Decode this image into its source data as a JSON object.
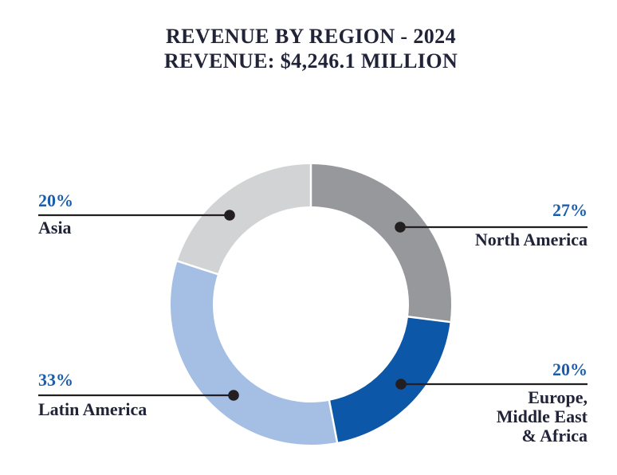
{
  "title": {
    "line1": "REVENUE BY REGION - 2024",
    "line2": "REVENUE: $4,246.1 MILLION"
  },
  "chart_data": {
    "type": "pie",
    "subtype": "donut",
    "title": "REVENUE BY REGION - 2024",
    "subtitle": "REVENUE: $4,246.1 MILLION",
    "total_revenue_label": "$4,246.1 MILLION",
    "unit": "percent",
    "direction": "clockwise",
    "start_angle_deg": 0,
    "legend_position": "callouts",
    "segments": [
      {
        "label": "North America",
        "value": 27,
        "value_label": "27%",
        "color": "#97989b"
      },
      {
        "label": "Europe, Middle East & Africa",
        "value": 20,
        "value_label": "20%",
        "color": "#0d57a9"
      },
      {
        "label": "Latin America",
        "value": 33,
        "value_label": "33%",
        "color": "#a5bfe4"
      },
      {
        "label": "Asia",
        "value": 20,
        "value_label": "20%",
        "color": "#d2d3d4"
      }
    ]
  },
  "callouts": {
    "asia": {
      "pct": "20%",
      "name": "Asia"
    },
    "north_america": {
      "pct": "27%",
      "name": "North America"
    },
    "latin_america": {
      "pct": "33%",
      "name": "Latin America"
    },
    "emea": {
      "pct": "20%",
      "name_line1": "Europe,",
      "name_line2": "Middle East",
      "name_line3": "& Africa"
    }
  },
  "colors": {
    "title_text": "#212338",
    "percent_text": "#1a5dad",
    "label_text": "#212338",
    "leader_line": "#231f20",
    "separator": "#ffffff",
    "background": "#ffffff"
  }
}
